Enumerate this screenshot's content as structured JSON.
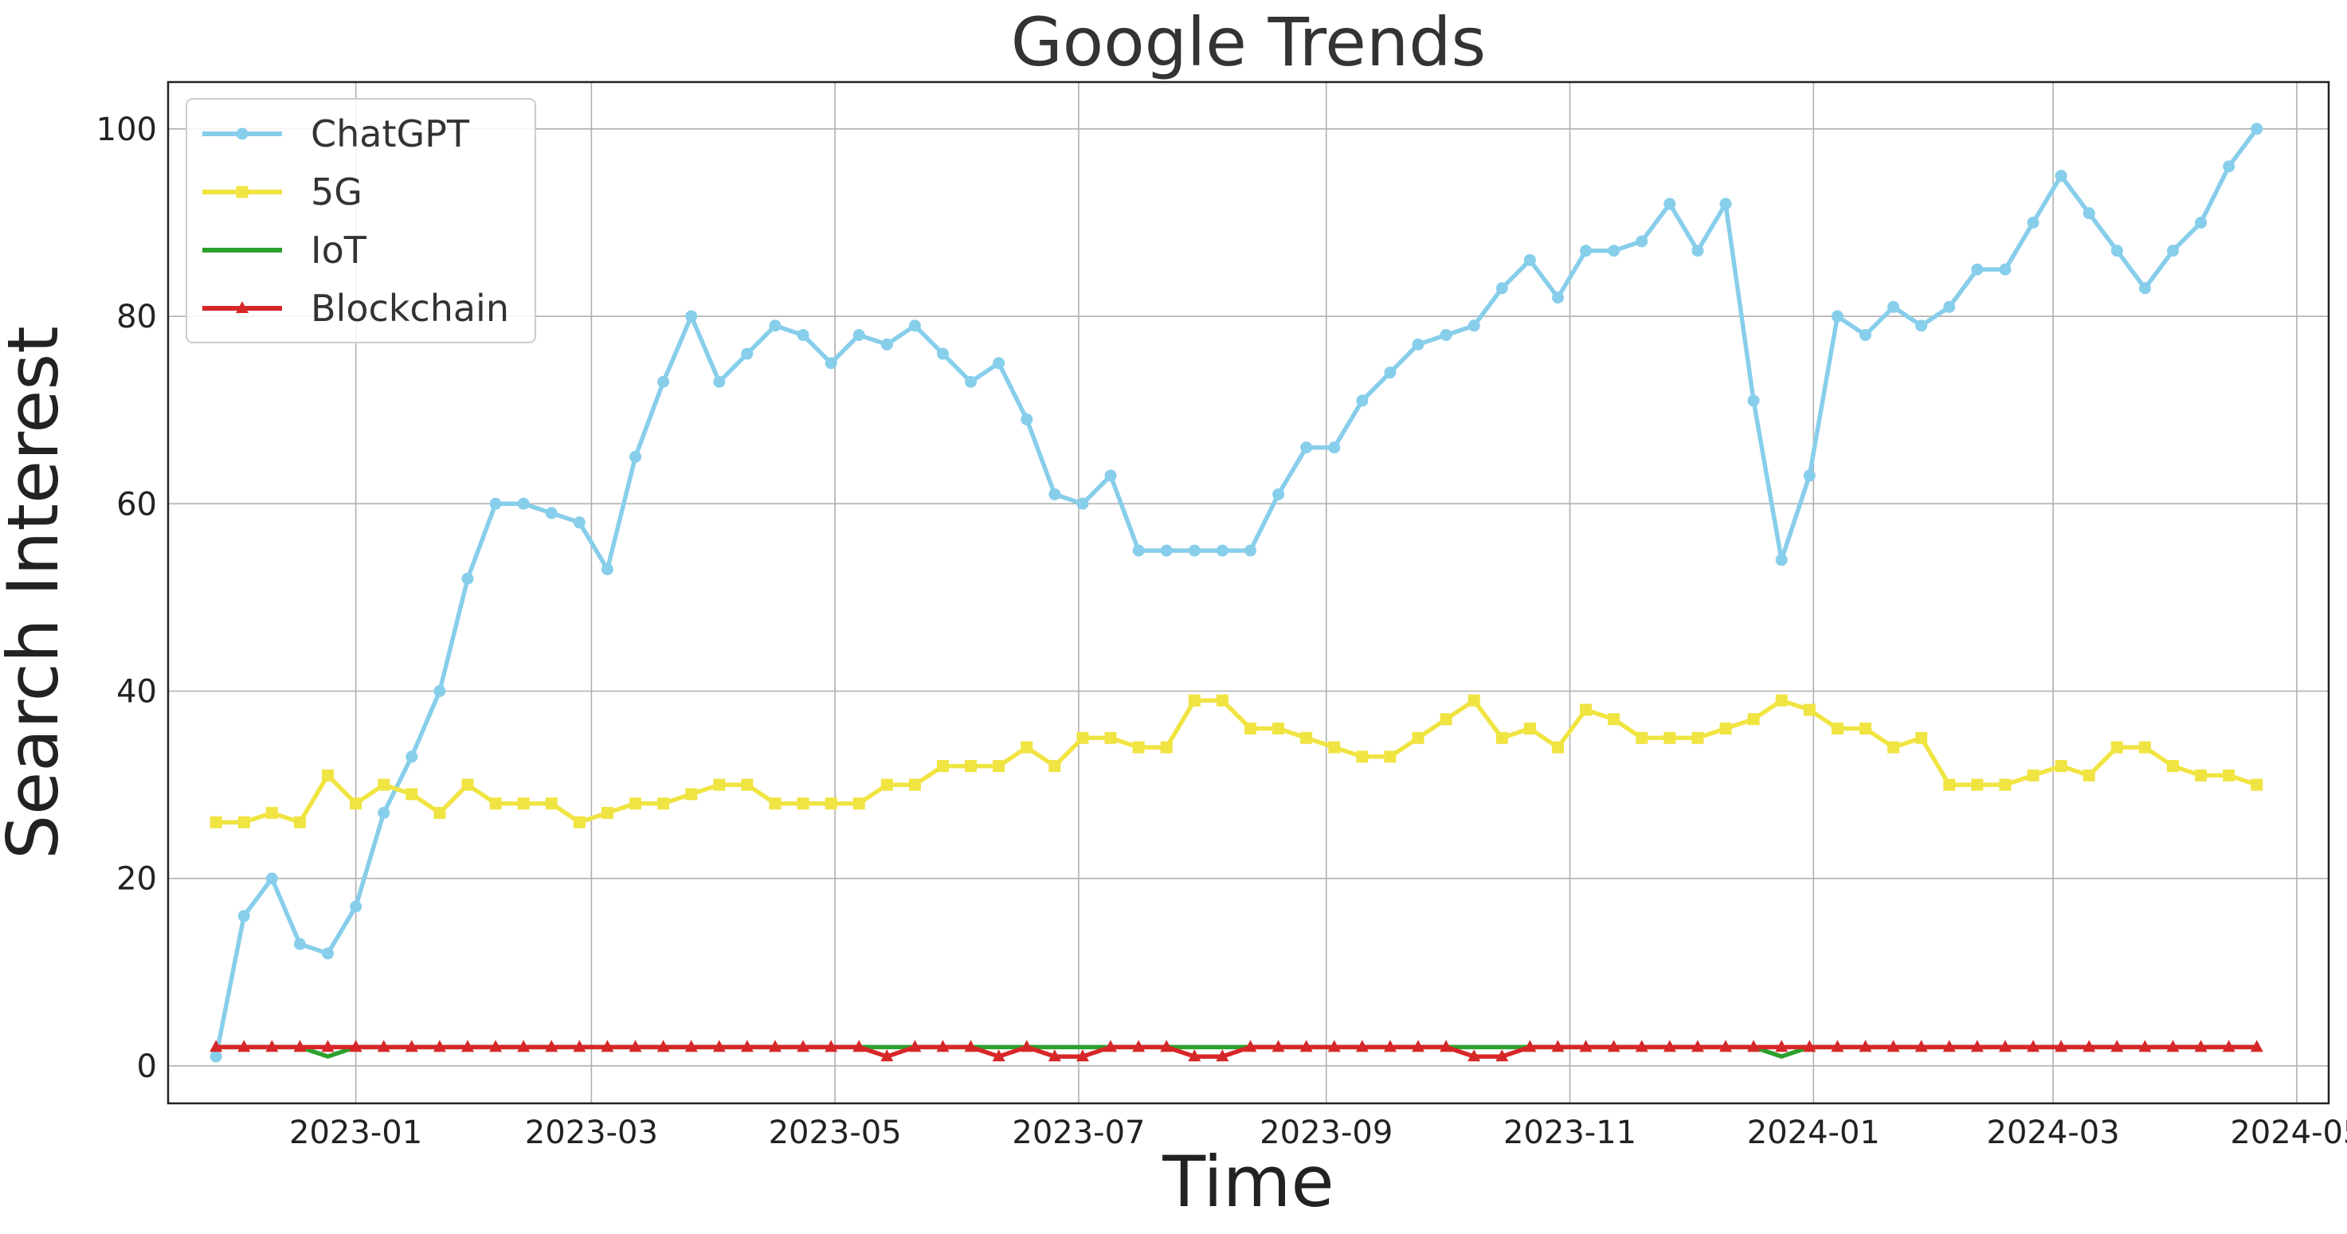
{
  "chart_data": {
    "type": "line",
    "title": "Google Trends",
    "xlabel": "Time",
    "ylabel": "Search Interest",
    "x_tick_labels": [
      "2023-01",
      "2023-03",
      "2023-05",
      "2023-07",
      "2023-09",
      "2023-11",
      "2024-01",
      "2024-03",
      "2024-05"
    ],
    "y_tick_labels": [
      "0",
      "20",
      "40",
      "60",
      "80",
      "100"
    ],
    "ylim": [
      -4,
      105
    ],
    "xlim": [
      "2022-11-15",
      "2024-05-09"
    ],
    "grid": true,
    "legend_position": "top-left",
    "x_start": "2022-11-27",
    "x_step_days": 7,
    "series": [
      {
        "name": "ChatGPT",
        "color": "#87ceeb",
        "marker": "circle",
        "values": [
          1,
          16,
          20,
          13,
          12,
          17,
          27,
          33,
          40,
          52,
          60,
          60,
          59,
          58,
          53,
          65,
          73,
          80,
          73,
          76,
          79,
          78,
          75,
          78,
          77,
          79,
          76,
          73,
          75,
          69,
          61,
          60,
          63,
          55,
          55,
          55,
          55,
          55,
          61,
          66,
          66,
          71,
          74,
          77,
          78,
          79,
          83,
          86,
          82,
          87,
          87,
          88,
          92,
          87,
          92,
          71,
          54,
          63,
          80,
          78,
          81,
          79,
          81,
          85,
          85,
          90,
          95,
          91,
          87,
          83,
          87,
          90,
          96,
          100
        ]
      },
      {
        "name": "5G",
        "color": "#f0e442",
        "marker": "square",
        "values": [
          26,
          26,
          27,
          26,
          31,
          28,
          30,
          29,
          27,
          30,
          28,
          28,
          28,
          26,
          27,
          28,
          28,
          29,
          30,
          30,
          28,
          28,
          28,
          28,
          30,
          30,
          32,
          32,
          32,
          34,
          32,
          35,
          35,
          34,
          34,
          39,
          39,
          36,
          36,
          35,
          34,
          33,
          33,
          35,
          37,
          39,
          35,
          36,
          34,
          38,
          37,
          35,
          35,
          35,
          36,
          37,
          39,
          38,
          36,
          36,
          34,
          35,
          30,
          30,
          30,
          31,
          32,
          31,
          34,
          34,
          32,
          31,
          31,
          30
        ]
      },
      {
        "name": "IoT",
        "color": "#2ca02c",
        "marker": "none",
        "values": [
          2,
          2,
          2,
          2,
          1,
          2,
          2,
          2,
          2,
          2,
          2,
          2,
          2,
          2,
          2,
          2,
          2,
          2,
          2,
          2,
          2,
          2,
          2,
          2,
          2,
          2,
          2,
          2,
          2,
          2,
          2,
          2,
          2,
          2,
          2,
          2,
          2,
          2,
          2,
          2,
          2,
          2,
          2,
          2,
          2,
          2,
          2,
          2,
          2,
          2,
          2,
          2,
          2,
          2,
          2,
          2,
          1,
          2,
          2,
          2,
          2,
          2,
          2,
          2,
          2,
          2,
          2,
          2,
          2,
          2,
          2,
          2,
          2,
          2
        ]
      },
      {
        "name": "Blockchain",
        "color": "#d62728",
        "marker": "triangle",
        "values": [
          2,
          2,
          2,
          2,
          2,
          2,
          2,
          2,
          2,
          2,
          2,
          2,
          2,
          2,
          2,
          2,
          2,
          2,
          2,
          2,
          2,
          2,
          2,
          2,
          1,
          2,
          2,
          2,
          1,
          2,
          1,
          1,
          2,
          2,
          2,
          1,
          1,
          2,
          2,
          2,
          2,
          2,
          2,
          2,
          2,
          1,
          1,
          2,
          2,
          2,
          2,
          2,
          2,
          2,
          2,
          2,
          2,
          2,
          2,
          2,
          2,
          2,
          2,
          2,
          2,
          2,
          2,
          2,
          2,
          2,
          2,
          2,
          2,
          2
        ]
      }
    ]
  }
}
